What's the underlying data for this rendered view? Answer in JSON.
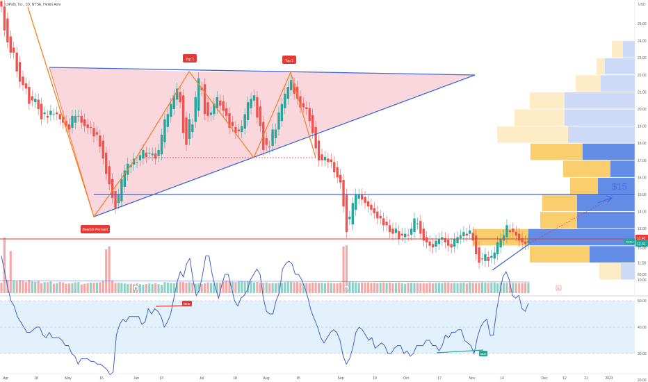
{
  "header": {
    "symbol_text": "UiPath, Inc., 1D, NYSE, Heikin Ashi"
  },
  "currency_label": "USD",
  "annotations": {
    "top1": "Top 1",
    "top2": "Top 2",
    "bearish": "Bearish Pennant",
    "target": "$15",
    "rsi_bear": "Bear",
    "rsi_bull": "Bull",
    "earn_marker": "E"
  },
  "price_badges": {
    "last": "12.42",
    "ticker": "PATH",
    "close": "12.31"
  },
  "colors": {
    "up": "#26a69a",
    "down": "#ef5350",
    "wedge_fill": "#f8c9d0",
    "trend_line": "#3d64dc",
    "zigzag": "#f4802a",
    "hline_red": "#e53935",
    "rsi_line": "#3f5fc2",
    "rsi_band": "#e3f1fc",
    "vp_yellow": "#f9c95c",
    "vp_blue": "#5b86e6"
  },
  "chart_data": [
    {
      "type": "candlestick",
      "title": "UiPath, Inc., 1D, NYSE, Heikin Ashi",
      "ylim": [
        9.8,
        26.0
      ],
      "y_ticks": [
        "10.00",
        "11.00",
        "12.00",
        "13.00",
        "14.00",
        "15.00",
        "16.00",
        "17.00",
        "18.00",
        "19.00",
        "20.00",
        "21.00",
        "22.00",
        "23.00",
        "24.00",
        "25.00"
      ],
      "x_ticks": [
        "Apr",
        "18",
        "May",
        "16",
        "Jun",
        "13",
        "Jul",
        "18",
        "Aug",
        "15",
        "Sep",
        "19",
        "Oct",
        "17",
        "Nov",
        "14",
        "Dec",
        "12",
        "21",
        "2023"
      ],
      "close": [
        26.0,
        24.6,
        23.9,
        23.3,
        23.3,
        22.2,
        21.6,
        21.4,
        21.2,
        20.3,
        20.5,
        20.6,
        20.0,
        19.4,
        19.8,
        19.5,
        19.9,
        19.7,
        19.7,
        19.4,
        19.2,
        19.0,
        18.8,
        19.6,
        19.6,
        19.6,
        19.2,
        19.0,
        18.9,
        18.9,
        18.4,
        18.5,
        17.8,
        17.1,
        16.2,
        15.6,
        14.8,
        14.2,
        15.0,
        15.9,
        16.4,
        16.8,
        16.7,
        17.1,
        16.9,
        17.3,
        17.6,
        17.2,
        17.4,
        17.4,
        17.1,
        17.6,
        18.5,
        19.4,
        19.7,
        20.3,
        20.8,
        21.2,
        20.4,
        18.6,
        17.9,
        19.4,
        19.1,
        20.7,
        21.8,
        21.1,
        19.7,
        19.6,
        19.8,
        20.3,
        20.7,
        20.2,
        19.9,
        19.6,
        18.9,
        19.0,
        18.6,
        18.7,
        19.0,
        19.7,
        20.4,
        20.6,
        20.8,
        19.5,
        19.0,
        17.6,
        17.9,
        17.8,
        18.8,
        18.8,
        19.8,
        20.3,
        20.9,
        21.3,
        21.7,
        20.9,
        20.6,
        20.1,
        20.1,
        20.0,
        19.3,
        18.6,
        17.7,
        17.0,
        17.0,
        17.2,
        16.9,
        16.9,
        16.3,
        16.0,
        15.7,
        14.3,
        12.8,
        13.7,
        14.5,
        15.0,
        15.0,
        14.7,
        14.5,
        14.3,
        14.1,
        13.9,
        13.6,
        13.6,
        13.2,
        13.2,
        12.8,
        12.7,
        13.0,
        12.4,
        12.6,
        12.7,
        12.6,
        13.0,
        13.6,
        13.3,
        12.7,
        12.3,
        12.2,
        12.0,
        11.9,
        12.3,
        12.4,
        12.5,
        12.2,
        12.0,
        11.9,
        12.4,
        12.5,
        12.6,
        12.8,
        12.6,
        12.9,
        12.3,
        11.5,
        11.0,
        11.2,
        11.5,
        11.1,
        11.4,
        11.6,
        12.2,
        12.4,
        12.6,
        13.2,
        12.8,
        12.8,
        12.6,
        12.3,
        12.2,
        12.1,
        12.3
      ],
      "volume": [
        55,
        95,
        70,
        72,
        68,
        64,
        68,
        65,
        60,
        70,
        63,
        61,
        66,
        52,
        58,
        58,
        63,
        50,
        53,
        60,
        57,
        50,
        51,
        53,
        57,
        59,
        46,
        50,
        53,
        56,
        55,
        56,
        58,
        66,
        75,
        80,
        68,
        54,
        55,
        54,
        51,
        49,
        50,
        47,
        52,
        47,
        45,
        48,
        51,
        49,
        53,
        47,
        44,
        58,
        56,
        54,
        52,
        57,
        60,
        59,
        55,
        58,
        55,
        50,
        53,
        48,
        52,
        57,
        54,
        52,
        56,
        55,
        61,
        66,
        62,
        60,
        58,
        62,
        64,
        61,
        63,
        62,
        57,
        59,
        56,
        55,
        57,
        52,
        54,
        53,
        55,
        54,
        58,
        60,
        60,
        58,
        59,
        56,
        52,
        54,
        53,
        56,
        57,
        54,
        55,
        52,
        56,
        54,
        52,
        53,
        56,
        80,
        82,
        60,
        58,
        57,
        55,
        57,
        56,
        57,
        54,
        55,
        53,
        55,
        57,
        54,
        56,
        52,
        54,
        56,
        53,
        50,
        55,
        55,
        54,
        54,
        53,
        53,
        52,
        55,
        52,
        54,
        55,
        53,
        56,
        56,
        53,
        54,
        53,
        54,
        55,
        51,
        56,
        54,
        53,
        54,
        56,
        55,
        54,
        55,
        56,
        52,
        55,
        54,
        54,
        53,
        54,
        53,
        53,
        53,
        54,
        54
      ]
    },
    {
      "type": "line",
      "name": "RSI",
      "ylim": [
        20,
        70
      ],
      "y_ticks": [
        "20.00",
        "30.00",
        "40.00",
        "50.00",
        "60.00",
        "70.00"
      ],
      "bands": [
        30,
        50,
        70
      ],
      "values": [
        67,
        61,
        55,
        50,
        48,
        44,
        42,
        40,
        38,
        38,
        39,
        40,
        40,
        37,
        36,
        38,
        36,
        36,
        36,
        35,
        33,
        33,
        30,
        29,
        26,
        28,
        28,
        28,
        27,
        27,
        26,
        26,
        25,
        24,
        22,
        23,
        37,
        41,
        43,
        42,
        44,
        44,
        44,
        44,
        41,
        42,
        47,
        45,
        47,
        46,
        44,
        40,
        42,
        45,
        51,
        57,
        61,
        59,
        64,
        66,
        58,
        52,
        54,
        60,
        67,
        67,
        60,
        55,
        51,
        56,
        60,
        60,
        55,
        50,
        48,
        51,
        52,
        54,
        58,
        60,
        62,
        60,
        51,
        46,
        45,
        45,
        50,
        53,
        62,
        64,
        65,
        64,
        60,
        60,
        58,
        55,
        51,
        46,
        43,
        40,
        36,
        34,
        36,
        38,
        39,
        38,
        35,
        29,
        26,
        28,
        32,
        38,
        40,
        39,
        37,
        35,
        36,
        32,
        33,
        34,
        33,
        30,
        30,
        32,
        33,
        33,
        30,
        31,
        29,
        30,
        33,
        33,
        33,
        35,
        35,
        33,
        33,
        31,
        33,
        37,
        36,
        38,
        38,
        39,
        39,
        35,
        34,
        33,
        30,
        36,
        40,
        42,
        43,
        37,
        37,
        46,
        53,
        59,
        61,
        58,
        52,
        51,
        52,
        47,
        46,
        49
      ]
    }
  ]
}
